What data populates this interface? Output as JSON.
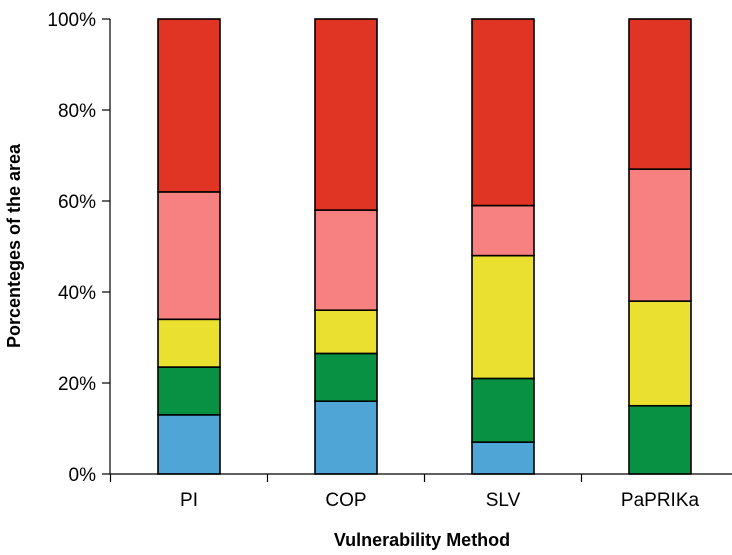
{
  "chart_data": {
    "type": "bar",
    "stacked": true,
    "percent": true,
    "title": "",
    "xlabel": "Vulnerability Method",
    "ylabel": "Porcenteges of the area",
    "ylim": [
      0,
      100
    ],
    "y_ticks": [
      "0%",
      "20%",
      "40%",
      "60%",
      "80%",
      "100%"
    ],
    "categories": [
      "PI",
      "COP",
      "SLV",
      "PaPRIKa"
    ],
    "legend": "none",
    "grid": false,
    "series": [
      {
        "color": "#4fa6d6",
        "values": [
          13,
          16,
          7,
          0
        ]
      },
      {
        "color": "#089143",
        "values": [
          10.5,
          10.5,
          14,
          15
        ]
      },
      {
        "color": "#e9e02f",
        "values": [
          10.5,
          9.5,
          27,
          23
        ]
      },
      {
        "color": "#f78181",
        "values": [
          28,
          22,
          11,
          29
        ]
      },
      {
        "color": "#e03424",
        "values": [
          38,
          42,
          41,
          33
        ]
      }
    ]
  }
}
